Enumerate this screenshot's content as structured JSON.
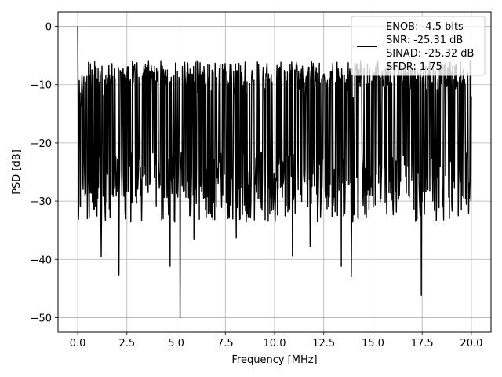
{
  "chart_data": {
    "type": "line",
    "title": "",
    "xlabel": "Frequency [MHz]",
    "ylabel": "PSD [dB]",
    "xlim": [
      -1.0,
      21.0
    ],
    "ylim": [
      -52.5,
      2.5
    ],
    "xticks": [
      0.0,
      2.5,
      5.0,
      7.5,
      10.0,
      12.5,
      15.0,
      17.5,
      20.0
    ],
    "xtick_labels": [
      "0.0",
      "2.5",
      "5.0",
      "7.5",
      "10.0",
      "12.5",
      "15.0",
      "17.5",
      "20.0"
    ],
    "yticks": [
      0,
      -10,
      -20,
      -30,
      -40,
      -50
    ],
    "ytick_labels": [
      "0",
      "−10",
      "−20",
      "−30",
      "−40",
      "−50"
    ],
    "grid": true,
    "legend_position": "top-right",
    "series_color": "#000000",
    "legend": {
      "lines": [
        "ENOB: -4.5 bits",
        "SNR: -25.31 dB",
        "SINAD: -25.32 dB",
        "SFDR: 1.75"
      ]
    },
    "series": [
      {
        "frequency_range": [
          0.0,
          20.0
        ],
        "points": 1024,
        "typical_range_db": [
          -28,
          -6
        ],
        "max_db": 0,
        "min_db": -50,
        "notable_points": [
          {
            "x": 0.0,
            "y": 0
          },
          {
            "x": 0.1,
            "y": -14
          },
          {
            "x": 0.35,
            "y": -26
          },
          {
            "x": 1.2,
            "y": -39.5
          },
          {
            "x": 2.1,
            "y": -42.7
          },
          {
            "x": 4.7,
            "y": -41.2
          },
          {
            "x": 5.2,
            "y": -50
          },
          {
            "x": 5.9,
            "y": -36.5
          },
          {
            "x": 8.05,
            "y": -36.3
          },
          {
            "x": 10.9,
            "y": -39.4
          },
          {
            "x": 11.8,
            "y": -37.8
          },
          {
            "x": 13.4,
            "y": -41.2
          },
          {
            "x": 13.9,
            "y": -43
          },
          {
            "x": 17.45,
            "y": -46.2
          },
          {
            "x": 19.9,
            "y": -29.5
          },
          {
            "x": 20.0,
            "y": -12
          }
        ]
      }
    ]
  }
}
